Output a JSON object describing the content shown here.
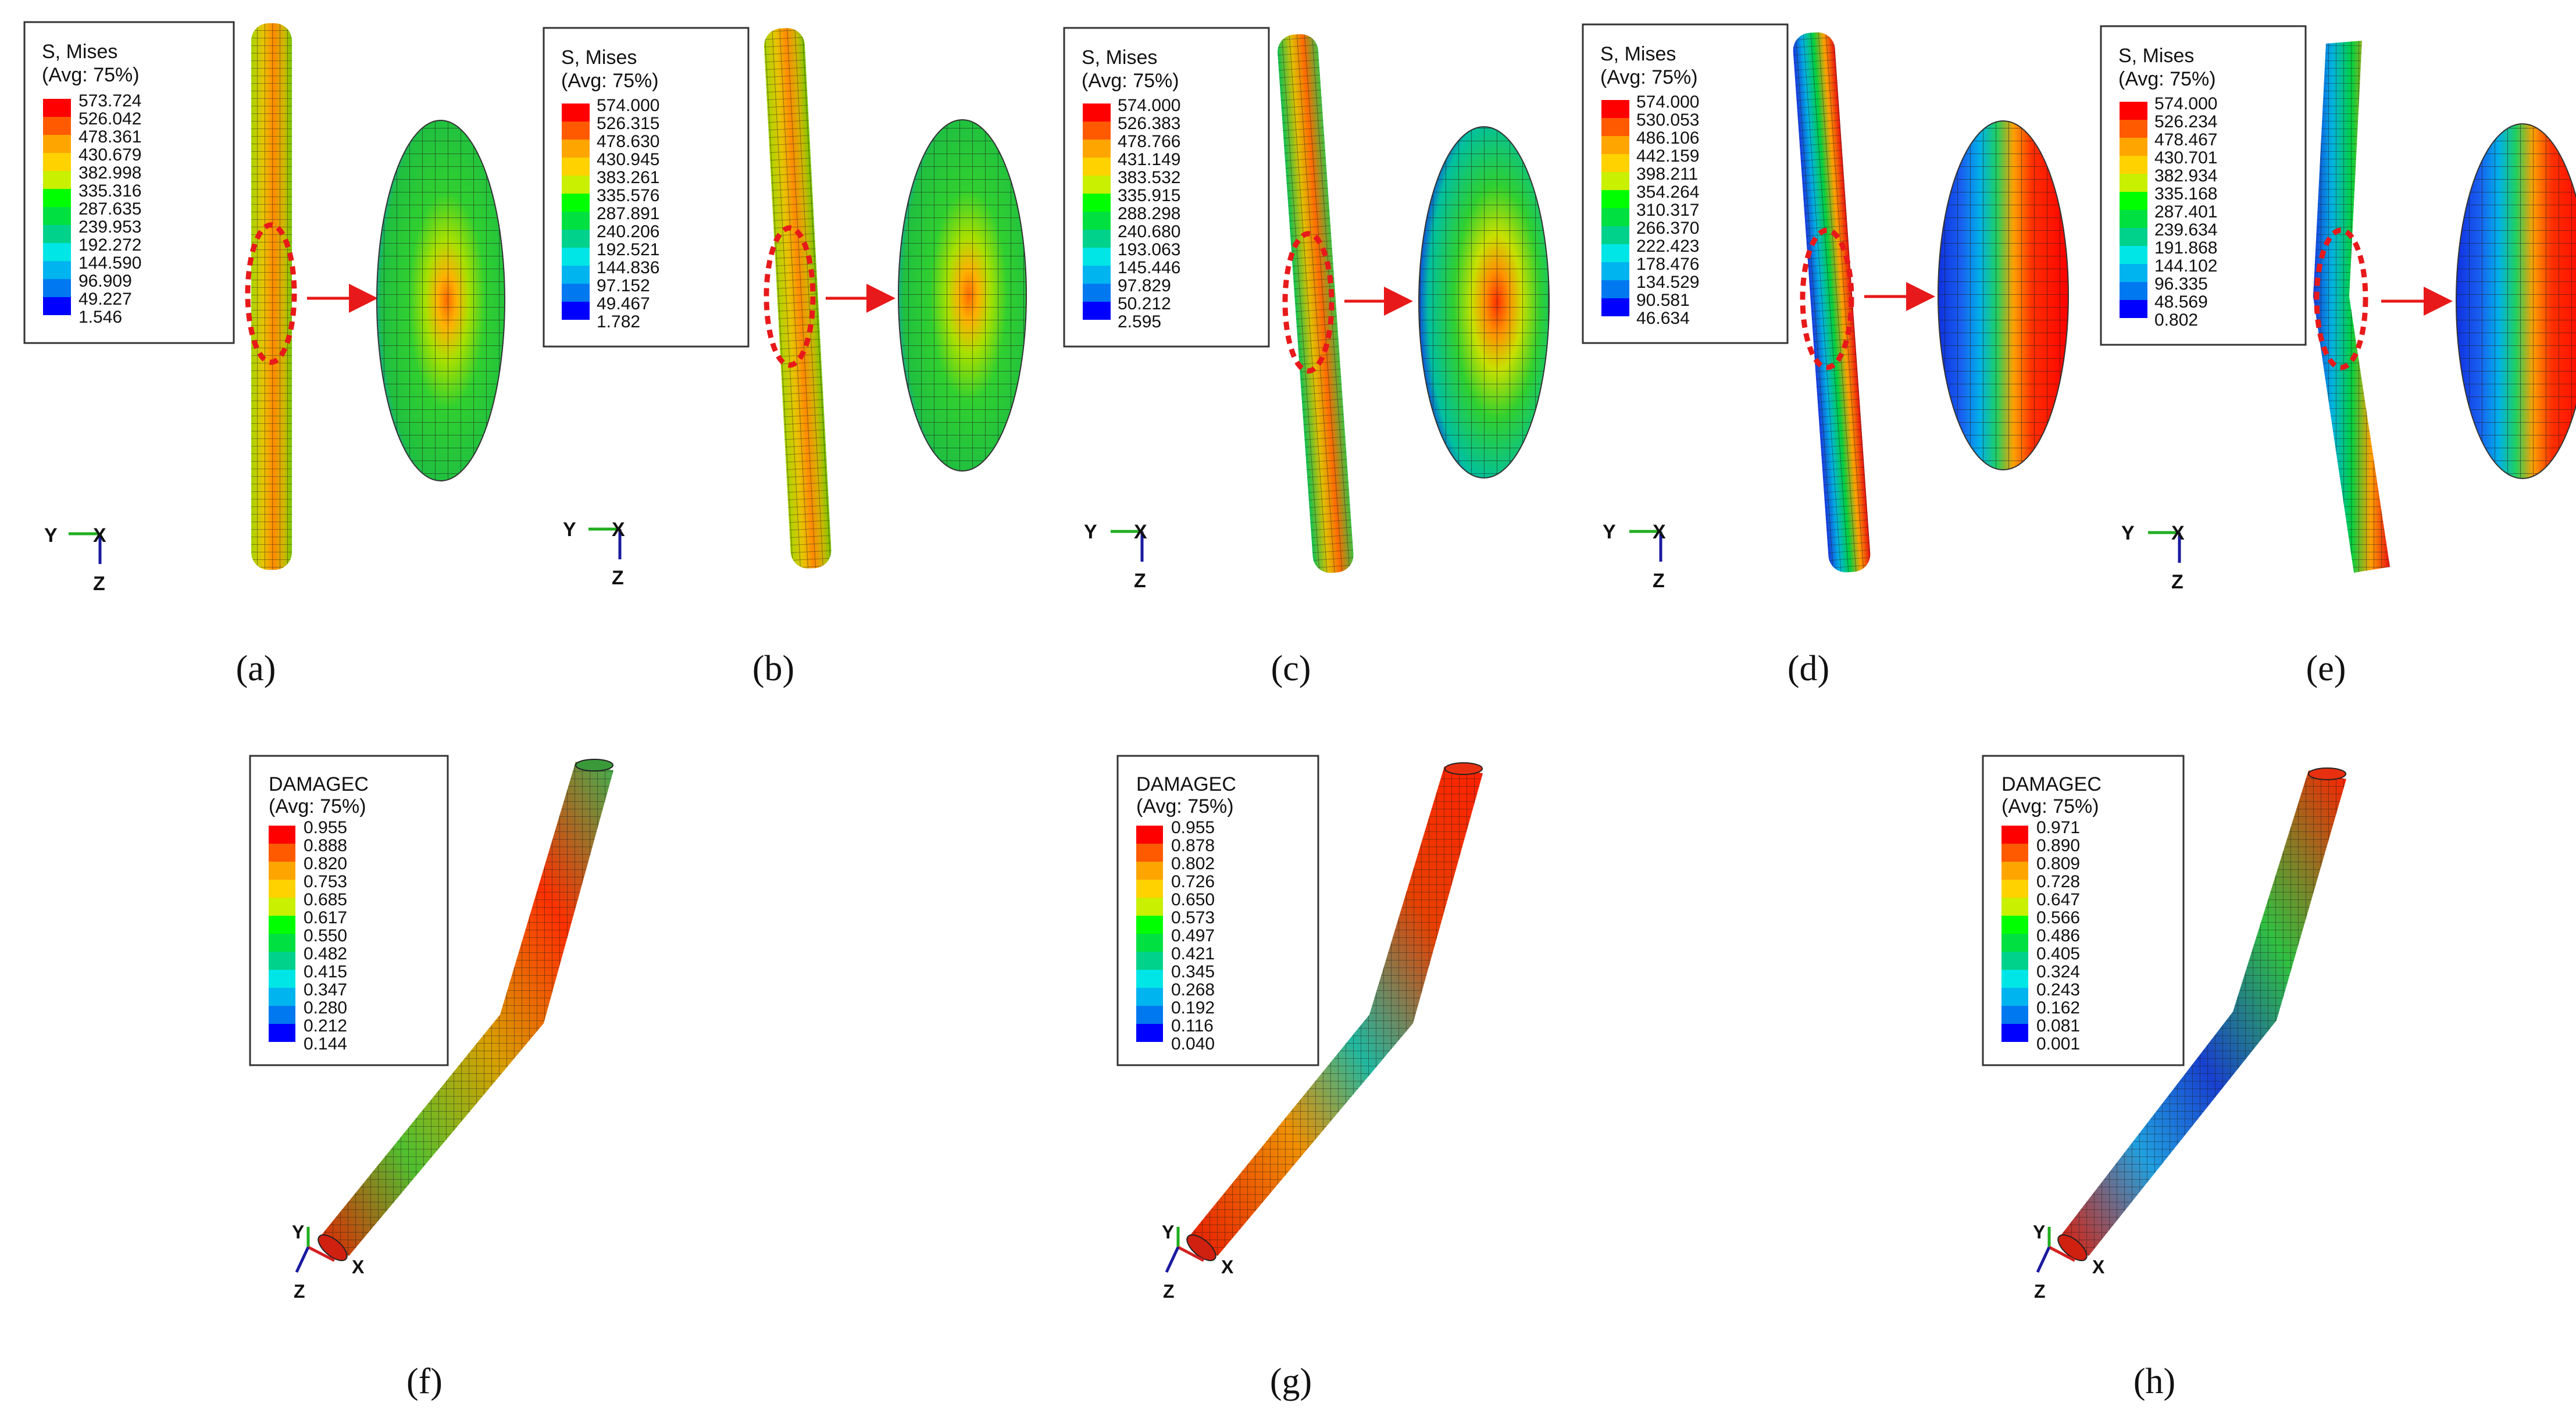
{
  "panels": [
    {
      "caption": "(a)",
      "legend": {
        "title": "S, Mises",
        "subtitle": "(Avg: 75%)",
        "values": [
          "573.724",
          "526.042",
          "478.361",
          "430.679",
          "382.998",
          "335.316",
          "287.635",
          "239.953",
          "192.272",
          "144.590",
          "96.909",
          "49.227",
          "1.546"
        ]
      },
      "triad": {
        "y": "Y",
        "x": "X",
        "z": "Z"
      }
    },
    {
      "caption": "(b)",
      "legend": {
        "title": "S, Mises",
        "subtitle": "(Avg: 75%)",
        "values": [
          "574.000",
          "526.315",
          "478.630",
          "430.945",
          "383.261",
          "335.576",
          "287.891",
          "240.206",
          "192.521",
          "144.836",
          "97.152",
          "49.467",
          "1.782"
        ]
      },
      "triad": {
        "y": "Y",
        "x": "X",
        "z": "Z"
      }
    },
    {
      "caption": "(c)",
      "legend": {
        "title": "S, Mises",
        "subtitle": "(Avg: 75%)",
        "values": [
          "574.000",
          "526.383",
          "478.766",
          "431.149",
          "383.532",
          "335.915",
          "288.298",
          "240.680",
          "193.063",
          "145.446",
          "97.829",
          "50.212",
          "2.595"
        ]
      },
      "triad": {
        "y": "Y",
        "x": "X",
        "z": "Z"
      }
    },
    {
      "caption": "(d)",
      "legend": {
        "title": "S, Mises",
        "subtitle": "(Avg: 75%)",
        "values": [
          "574.000",
          "530.053",
          "486.106",
          "442.159",
          "398.211",
          "354.264",
          "310.317",
          "266.370",
          "222.423",
          "178.476",
          "134.529",
          "90.581",
          "46.634"
        ]
      },
      "triad": {
        "y": "Y",
        "x": "X",
        "z": "Z"
      }
    },
    {
      "caption": "(e)",
      "legend": {
        "title": "S, Mises",
        "subtitle": "(Avg: 75%)",
        "values": [
          "574.000",
          "526.234",
          "478.467",
          "430.701",
          "382.934",
          "335.168",
          "287.401",
          "239.634",
          "191.868",
          "144.102",
          "96.335",
          "48.569",
          "0.802"
        ]
      },
      "triad": {
        "y": "Y",
        "x": "X",
        "z": "Z"
      }
    },
    {
      "caption": "(f)",
      "legend": {
        "title": "DAMAGEC",
        "subtitle": "(Avg: 75%)",
        "values": [
          "0.955",
          "0.888",
          "0.820",
          "0.753",
          "0.685",
          "0.617",
          "0.550",
          "0.482",
          "0.415",
          "0.347",
          "0.280",
          "0.212",
          "0.144"
        ]
      },
      "triad": {
        "y": "Y",
        "x": "X",
        "z": "Z"
      }
    },
    {
      "caption": "(g)",
      "legend": {
        "title": "DAMAGEC",
        "subtitle": "(Avg: 75%)",
        "values": [
          "0.955",
          "0.878",
          "0.802",
          "0.726",
          "0.650",
          "0.573",
          "0.497",
          "0.421",
          "0.345",
          "0.268",
          "0.192",
          "0.116",
          "0.040"
        ]
      },
      "triad": {
        "y": "Y",
        "x": "X",
        "z": "Z"
      }
    },
    {
      "caption": "(h)",
      "legend": {
        "title": "DAMAGEC",
        "subtitle": "(Avg: 75%)",
        "values": [
          "0.971",
          "0.890",
          "0.809",
          "0.728",
          "0.647",
          "0.566",
          "0.486",
          "0.405",
          "0.324",
          "0.243",
          "0.162",
          "0.081",
          "0.001"
        ]
      },
      "triad": {
        "y": "Y",
        "x": "X",
        "z": "Z"
      }
    }
  ],
  "colors": {
    "contour_scale": [
      "#ff0000",
      "#ff5a00",
      "#ffa500",
      "#ffd200",
      "#c8f000",
      "#00ff00",
      "#00e040",
      "#00d28c",
      "#00e6e6",
      "#00b4f0",
      "#0078f0",
      "#0000ff"
    ],
    "callout": "#e8191a",
    "axis_y": "#1fae1f",
    "axis_z": "#1a1aa0",
    "axis_x": "#d42020",
    "mesh": "#1a1a1a"
  }
}
